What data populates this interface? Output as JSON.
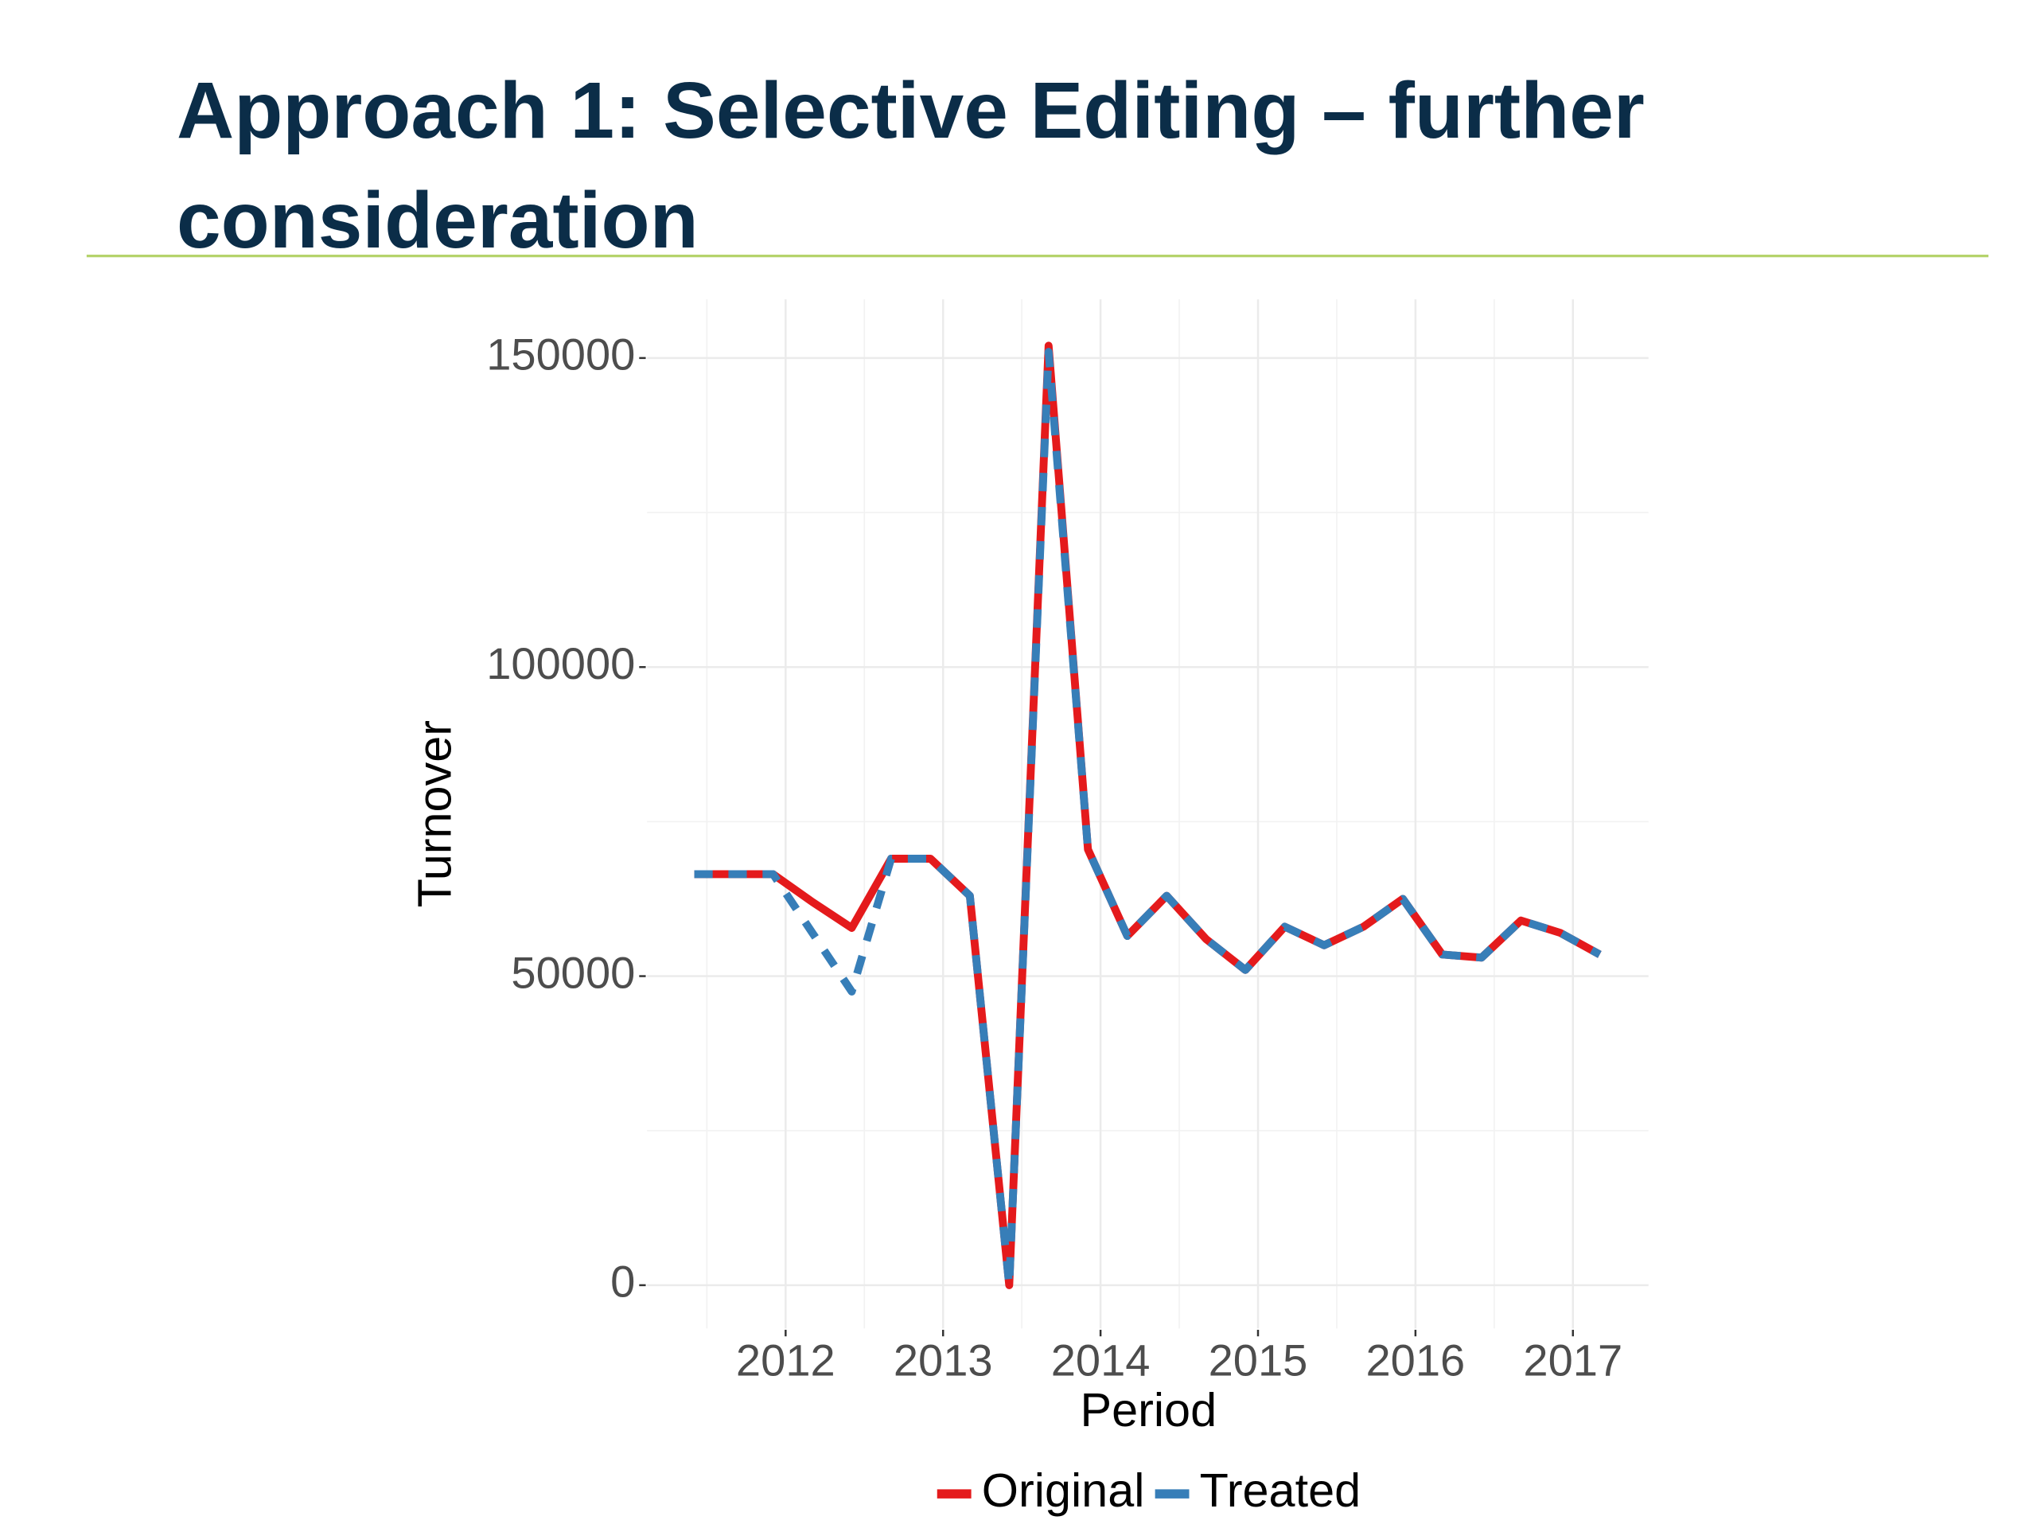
{
  "chart_data": {
    "type": "line",
    "title": "Approach 1: Selective Editing – further consideration",
    "x_label": "Period",
    "y_label": "Turnover",
    "x": [
      2011.42,
      2011.67,
      2011.92,
      2012.17,
      2012.42,
      2012.67,
      2012.92,
      2013.17,
      2013.42,
      2013.67,
      2013.92,
      2014.17,
      2014.42,
      2014.67,
      2014.92,
      2015.17,
      2015.42,
      2015.67,
      2015.92,
      2016.17,
      2016.42,
      2016.67,
      2016.92,
      2017.17
    ],
    "series": [
      {
        "name": "Original",
        "color": "#e41a1c",
        "values": [
          66500,
          66500,
          66500,
          62000,
          57800,
          69000,
          69000,
          63000,
          0,
          152000,
          70500,
          56500,
          63000,
          56000,
          51000,
          58000,
          55000,
          58000,
          62500,
          53500,
          53000,
          59000,
          57000,
          53500
        ]
      },
      {
        "name": "Treated",
        "color": "#377eb8",
        "values": [
          66500,
          66500,
          66500,
          57000,
          47500,
          69000,
          69000,
          63000,
          0,
          151000,
          70500,
          56500,
          63000,
          56000,
          51000,
          58000,
          55000,
          58000,
          62500,
          53500,
          53000,
          59000,
          57000,
          53500
        ]
      }
    ],
    "xlim": [
      2011.12,
      2017.48
    ],
    "xticks": [
      2012,
      2013,
      2014,
      2015,
      2016,
      2017
    ],
    "ylim": [
      -7000,
      159500
    ],
    "yticks": [
      0,
      50000,
      100000,
      150000
    ],
    "grid": true,
    "legend": "bottom"
  }
}
